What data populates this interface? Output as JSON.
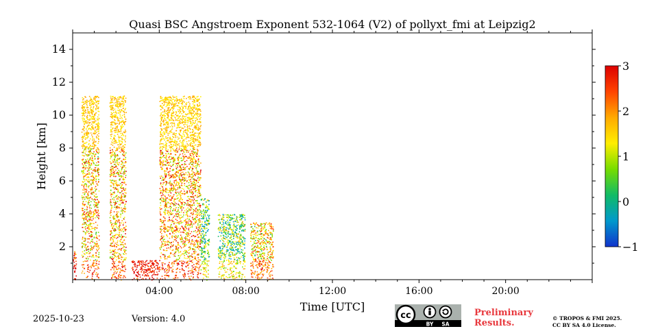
{
  "chart_data": {
    "type": "heatmap",
    "title": "Quasi BSC Angstroem Exponent 532-1064 (V2) of pollyxt_fmi at Leipzig2",
    "xlabel": "Time [UTC]",
    "ylabel": "Height [km]",
    "xlim_hours": [
      0,
      24
    ],
    "ylim_km": [
      0,
      15
    ],
    "x_tick_labels": [
      "04:00",
      "08:00",
      "12:00",
      "16:00",
      "20:00"
    ],
    "x_tick_hours": [
      4,
      8,
      12,
      16,
      20
    ],
    "y_tick_values": [
      2,
      4,
      6,
      8,
      10,
      12,
      14
    ],
    "y_tick_labels": [
      "2",
      "4",
      "6",
      "8",
      "10",
      "12",
      "14"
    ],
    "colorbar": {
      "min": -1,
      "max": 3,
      "tick_values": [
        -1,
        0,
        1,
        2,
        3
      ],
      "tick_labels": [
        "−1",
        "0",
        "1",
        "2",
        "3"
      ],
      "colors": [
        "#1133cc",
        "#0099cc",
        "#11bb66",
        "#77dd00",
        "#ffee00",
        "#ffaa00",
        "#ff4400",
        "#dd0000"
      ]
    },
    "segments": [
      {
        "t0": 0.0,
        "t1": 0.15,
        "hmax": 1.8,
        "mean": 2.4
      },
      {
        "t0": 0.4,
        "t1": 1.2,
        "hmax": 11.2,
        "mean": 1.6
      },
      {
        "t0": 1.7,
        "t1": 2.45,
        "hmax": 11.2,
        "mean": 1.7
      },
      {
        "t0": 2.7,
        "t1": 4.0,
        "hmax": 1.2,
        "mean": 2.0
      },
      {
        "t0": 4.0,
        "t1": 5.9,
        "hmax": 11.2,
        "mean": 1.8
      },
      {
        "t0": 5.9,
        "t1": 6.3,
        "hmax": 5.0,
        "mean": 0.5
      },
      {
        "t0": 6.7,
        "t1": 7.95,
        "hmax": 4.0,
        "mean": 0.6
      },
      {
        "t0": 8.2,
        "t1": 9.25,
        "hmax": 3.5,
        "mean": 1.5
      }
    ]
  },
  "footer": {
    "date": "2025-10-23",
    "version": "Version: 4.0",
    "preliminary_line1": "Preliminary",
    "preliminary_line2": "Results.",
    "copyright_line1": "© TROPOS & FMI 2025.",
    "copyright_line2": "CC BY SA 4.0 License.",
    "badge_by": "BY",
    "badge_sa": "SA"
  }
}
